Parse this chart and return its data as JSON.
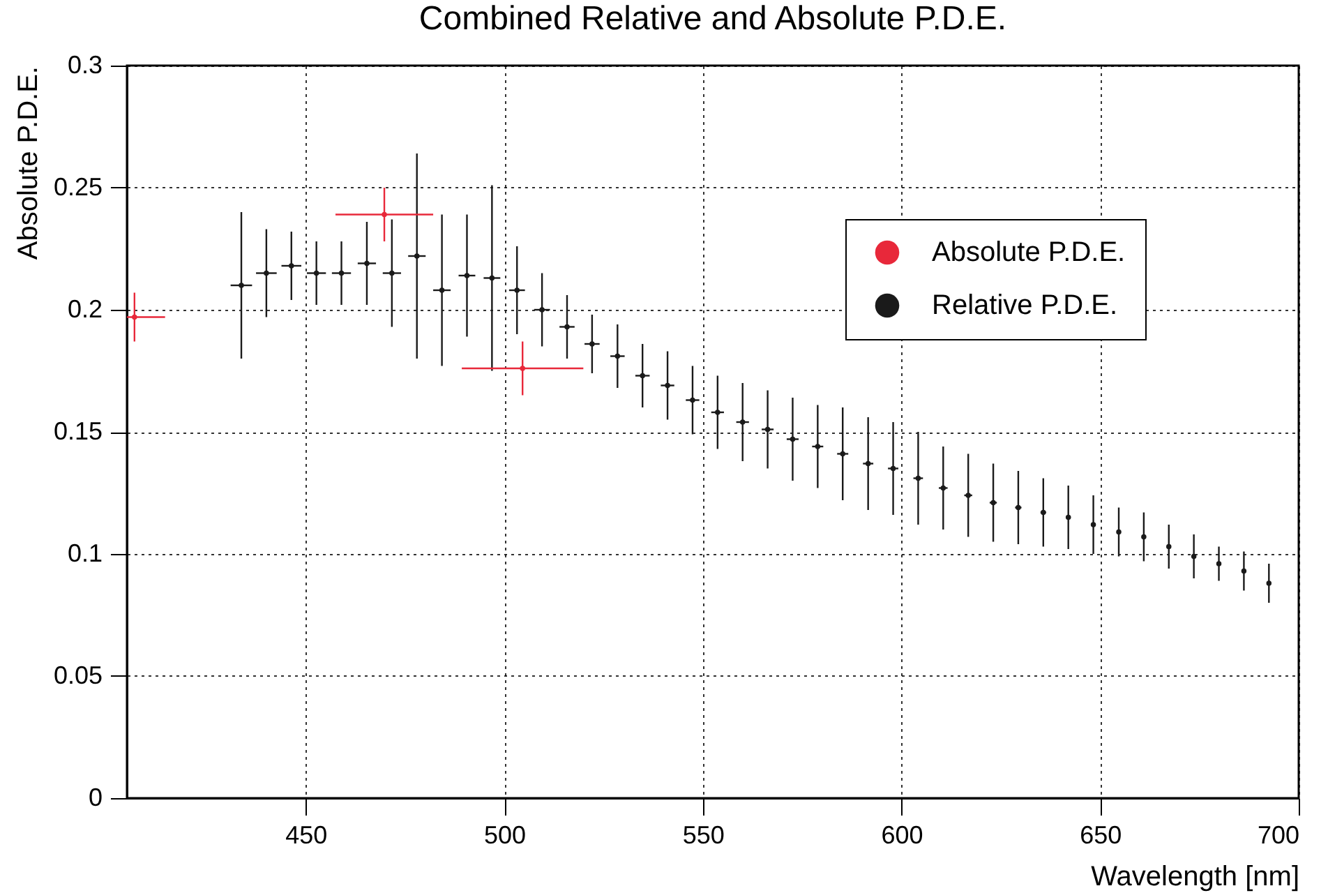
{
  "chart_data": {
    "type": "scatter",
    "title": "Combined Relative and Absolute P.D.E.",
    "xlabel": "Wavelength [nm]",
    "ylabel": "Absolute P.D.E.",
    "xlim": [
      405,
      700
    ],
    "xticks": [
      450,
      500,
      550,
      600,
      650,
      700
    ],
    "ylim": [
      0,
      0.3
    ],
    "yticks": [
      0,
      0.05,
      0.1,
      0.15,
      0.2,
      0.25,
      0.3
    ],
    "grid": true,
    "legend": "top right",
    "marker": "circle",
    "series": [
      {
        "name": "Absolute P.D.E.",
        "color": "#e8283a",
        "x": [
          406.9,
          469.8,
          504.6
        ],
        "values": [
          0.197,
          0.239,
          0.176
        ],
        "errors": [
          0.01,
          0.011,
          0.011
        ],
        "xerrors": [
          [
            405,
            414.6
          ],
          12.3,
          15.3
        ]
      },
      {
        "name": "Relative P.D.E.",
        "color": "#1a1a1a",
        "x": [
          433.8,
          440.1,
          446.4,
          452.7,
          459.0,
          465.4,
          471.7,
          478.0,
          484.3,
          490.6,
          496.9,
          503.2,
          509.5,
          515.8,
          522.1,
          528.5,
          534.8,
          541.1,
          547.4,
          553.7,
          560.0,
          566.3,
          572.6,
          578.9,
          585.2,
          591.6,
          597.9,
          604.2,
          610.5,
          616.8,
          623.1,
          629.4,
          635.7,
          642.0,
          648.3,
          654.7,
          661.0,
          667.3,
          673.6,
          679.9,
          686.2,
          692.5
        ],
        "values": [
          0.21,
          0.215,
          0.218,
          0.215,
          0.215,
          0.219,
          0.215,
          0.222,
          0.208,
          0.214,
          0.213,
          0.208,
          0.2,
          0.193,
          0.186,
          0.181,
          0.173,
          0.169,
          0.163,
          0.158,
          0.154,
          0.151,
          0.147,
          0.144,
          0.141,
          0.137,
          0.135,
          0.131,
          0.127,
          0.124,
          0.121,
          0.119,
          0.117,
          0.115,
          0.112,
          0.109,
          0.107,
          0.103,
          0.099,
          0.096,
          0.093,
          0.088
        ],
        "errors": [
          0.03,
          0.018,
          0.014,
          0.013,
          0.013,
          0.017,
          0.022,
          0.042,
          0.031,
          0.025,
          0.038,
          0.018,
          0.015,
          0.013,
          0.012,
          0.013,
          0.013,
          0.014,
          0.014,
          0.015,
          0.016,
          0.016,
          0.017,
          0.017,
          0.019,
          0.019,
          0.019,
          0.019,
          0.017,
          0.017,
          0.016,
          0.015,
          0.014,
          0.013,
          0.012,
          0.01,
          0.01,
          0.009,
          0.009,
          0.007,
          0.008,
          0.008
        ],
        "xerrors": [
          2.7,
          2.6,
          2.5,
          2.4,
          2.4,
          2.3,
          2.3,
          2.2,
          2.2,
          2.1,
          2.1,
          2.0,
          2.0,
          1.9,
          1.9,
          1.8,
          1.8,
          1.7,
          1.7,
          1.6,
          1.6,
          1.5,
          1.5,
          1.4,
          1.4,
          1.3,
          1.3,
          1.2,
          1.1,
          1.0,
          0.9,
          0.8,
          0.7,
          0.6,
          0.5,
          0.5,
          0.4,
          0.4,
          0.3,
          0.3,
          0.3,
          0.3
        ]
      }
    ]
  }
}
